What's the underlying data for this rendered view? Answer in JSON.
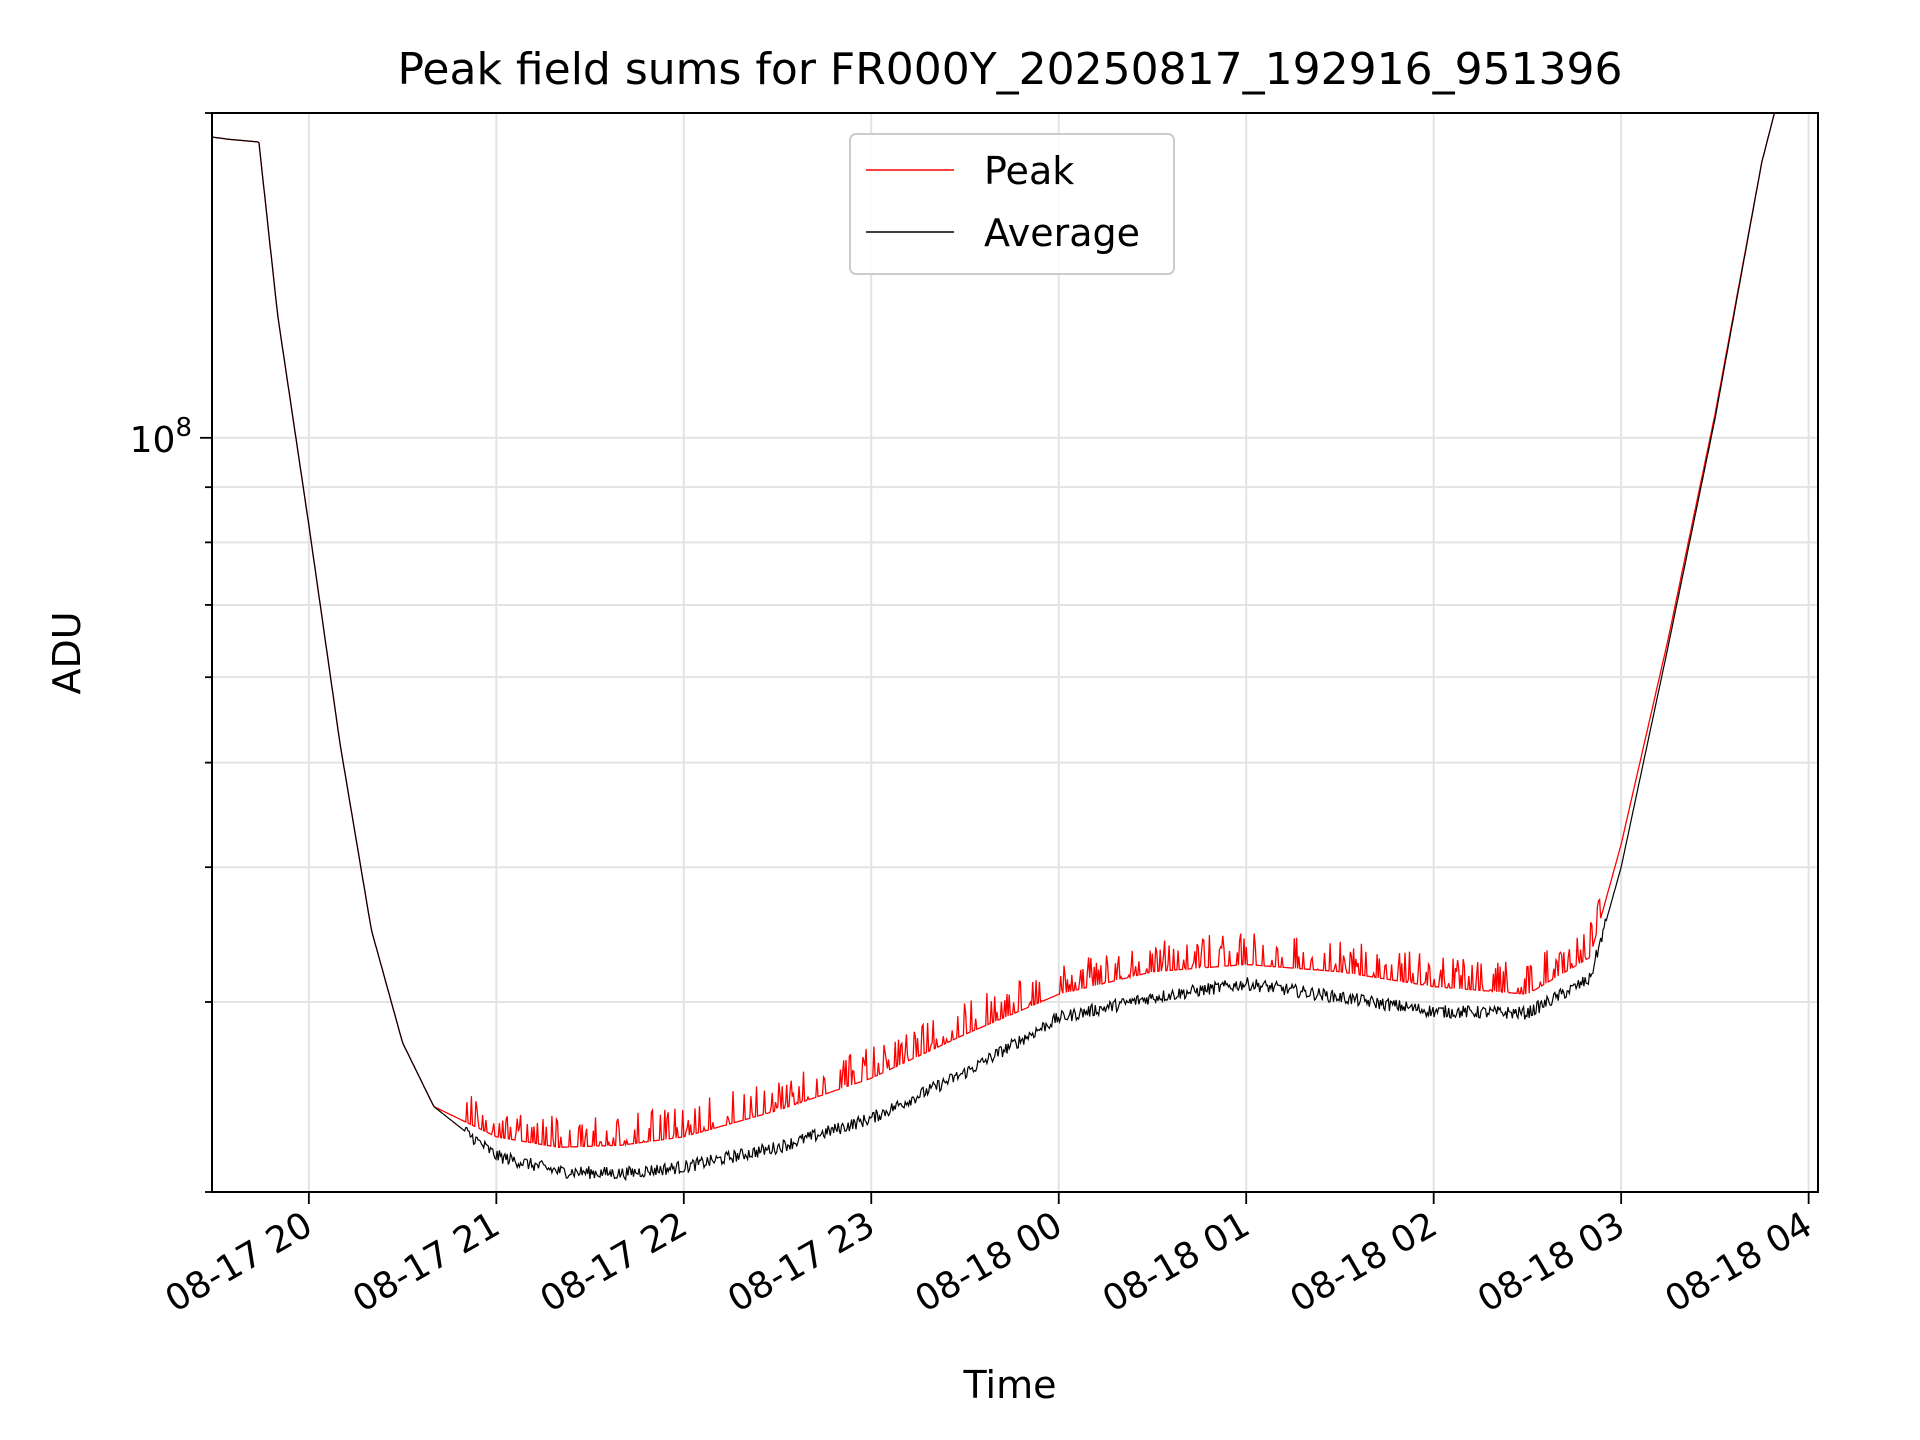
{
  "chart_data": {
    "type": "line",
    "title": "Peak field sums for FR000Y_20250817_192916_951396",
    "xlabel": "Time",
    "ylabel": "ADU",
    "yscale": "log",
    "ylim": [
      20000000,
      200000000
    ],
    "xlim": [
      "2025-08-17 19:29",
      "2025-08-18 04:03"
    ],
    "grid": true,
    "legend_position": "top-center",
    "x_ticks": [
      "08-17 20",
      "08-17 21",
      "08-17 22",
      "08-17 23",
      "08-18 00",
      "08-18 01",
      "08-18 02",
      "08-18 03",
      "08-18 04"
    ],
    "y_ticks": [
      "10^8"
    ],
    "series": [
      {
        "name": "Peak",
        "color": "#ff0000",
        "x": [
          "2025-08-17 19:29",
          "2025-08-17 19:35",
          "2025-08-17 19:44",
          "2025-08-17 19:50",
          "2025-08-17 20:00",
          "2025-08-17 20:10",
          "2025-08-17 20:20",
          "2025-08-17 20:30",
          "2025-08-17 20:40",
          "2025-08-17 21:00",
          "2025-08-17 21:20",
          "2025-08-17 21:40",
          "2025-08-17 22:00",
          "2025-08-17 22:30",
          "2025-08-17 23:00",
          "2025-08-17 23:30",
          "2025-08-18 00:00",
          "2025-08-18 00:30",
          "2025-08-18 01:00",
          "2025-08-18 01:30",
          "2025-08-18 02:00",
          "2025-08-18 02:30",
          "2025-08-18 02:50",
          "2025-08-18 03:00",
          "2025-08-18 03:15",
          "2025-08-18 03:30",
          "2025-08-18 03:45",
          "2025-08-18 03:50"
        ],
        "y": [
          190000000,
          189000000,
          188000000,
          130000000,
          83000000,
          52000000,
          35000000,
          27500000,
          24000000,
          22500000,
          22000000,
          22100000,
          22500000,
          23800000,
          25500000,
          28000000,
          30500000,
          32000000,
          32500000,
          32000000,
          31000000,
          30500000,
          33000000,
          42000000,
          65000000,
          105000000,
          180000000,
          205000000
        ]
      },
      {
        "name": "Average",
        "color": "#000000",
        "x": [
          "2025-08-17 19:29",
          "2025-08-17 19:35",
          "2025-08-17 19:44",
          "2025-08-17 19:50",
          "2025-08-17 20:00",
          "2025-08-17 20:10",
          "2025-08-17 20:20",
          "2025-08-17 20:30",
          "2025-08-17 20:40",
          "2025-08-17 21:00",
          "2025-08-17 21:20",
          "2025-08-17 21:40",
          "2025-08-17 22:00",
          "2025-08-17 22:30",
          "2025-08-17 23:00",
          "2025-08-17 23:30",
          "2025-08-18 00:00",
          "2025-08-18 00:30",
          "2025-08-18 01:00",
          "2025-08-18 01:30",
          "2025-08-18 02:00",
          "2025-08-18 02:30",
          "2025-08-18 02:50",
          "2025-08-18 03:00",
          "2025-08-18 03:15",
          "2025-08-18 03:30",
          "2025-08-18 03:45",
          "2025-08-18 03:50"
        ],
        "y": [
          190000000,
          189000000,
          188000000,
          130000000,
          83000000,
          52000000,
          35000000,
          27500000,
          24000000,
          21600000,
          20900000,
          20800000,
          21100000,
          22000000,
          23400000,
          25800000,
          29000000,
          30300000,
          31200000,
          30300000,
          29400000,
          29300000,
          31500000,
          40000000,
          64000000,
          104000000,
          180000000,
          205000000
        ]
      }
    ]
  }
}
